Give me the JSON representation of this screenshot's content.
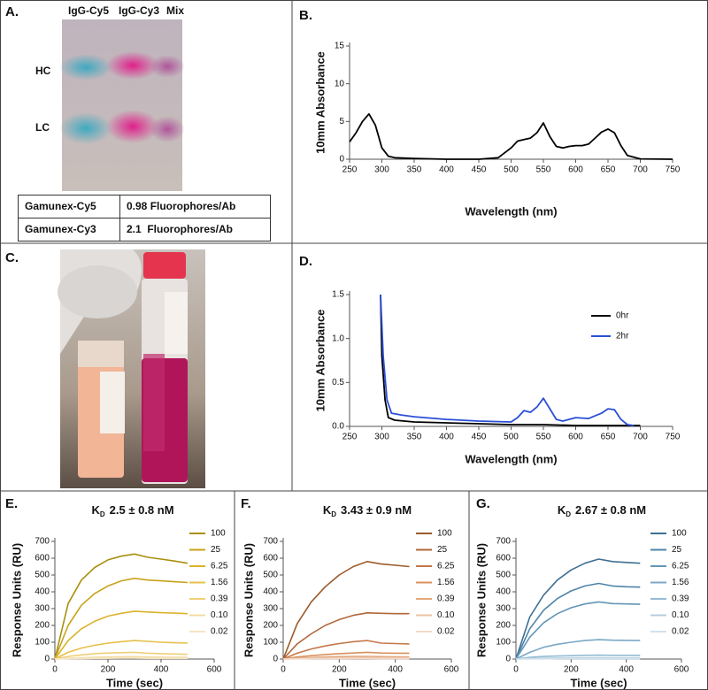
{
  "panel_labels": [
    "A.",
    "B.",
    "C.",
    "D.",
    "E.",
    "F.",
    "G."
  ],
  "gel": {
    "lanes": [
      "IgG-Cy5",
      "IgG-Cy3",
      "Mix"
    ],
    "bands": [
      "HC",
      "LC"
    ]
  },
  "table": {
    "rows": [
      [
        "Gamunex-Cy5",
        "0.98 Fluorophores/Ab"
      ],
      [
        "Gamunex-Cy3",
        "2.1  Fluorophores/Ab"
      ]
    ]
  },
  "chart_data": [
    {
      "type": "line",
      "ylabel": "10mm Absorbance",
      "xlabel": "Wavelength (nm)",
      "x": [
        250,
        260,
        270,
        280,
        290,
        300,
        310,
        320,
        350,
        400,
        450,
        480,
        500,
        510,
        520,
        530,
        540,
        550,
        560,
        570,
        580,
        590,
        600,
        610,
        620,
        630,
        640,
        650,
        660,
        670,
        680,
        700,
        750
      ],
      "series": [
        {
          "color": "#000000",
          "values": [
            2.3,
            3.5,
            5,
            6,
            4.5,
            1.5,
            0.4,
            0.2,
            0.1,
            0,
            0,
            0.2,
            1.5,
            2.4,
            2.6,
            2.8,
            3.5,
            4.8,
            3,
            1.7,
            1.5,
            1.7,
            1.8,
            1.8,
            2,
            2.8,
            3.6,
            4,
            3.5,
            1.8,
            0.5,
            0.05,
            0
          ]
        }
      ],
      "xlim": [
        250,
        750
      ],
      "xticks": [
        250,
        300,
        350,
        400,
        450,
        500,
        550,
        600,
        650,
        700,
        750
      ],
      "ylim": [
        0,
        15
      ],
      "yticks": [
        0,
        5,
        10,
        15
      ]
    },
    {
      "type": "line",
      "ylabel": "10mm Absorbance",
      "xlabel": "Wavelength (nm)",
      "series": [
        {
          "name": "0hr",
          "color": "#000000",
          "x": [
            298,
            300,
            305,
            310,
            320,
            350,
            400,
            450,
            500,
            550,
            600,
            650,
            700
          ],
          "values": [
            1.5,
            0.8,
            0.3,
            0.1,
            0.07,
            0.05,
            0.04,
            0.03,
            0.02,
            0.02,
            0.01,
            0.01,
            0.01
          ]
        },
        {
          "name": "2hr",
          "color": "#2b4fd6",
          "x": [
            298,
            302,
            308,
            315,
            330,
            350,
            400,
            450,
            500,
            510,
            520,
            530,
            540,
            550,
            560,
            570,
            580,
            600,
            620,
            640,
            650,
            660,
            670,
            680,
            690
          ],
          "values": [
            1.5,
            0.8,
            0.3,
            0.15,
            0.13,
            0.11,
            0.08,
            0.06,
            0.05,
            0.1,
            0.18,
            0.16,
            0.22,
            0.32,
            0.2,
            0.08,
            0.06,
            0.1,
            0.09,
            0.15,
            0.2,
            0.19,
            0.08,
            0.02,
            0.01
          ]
        }
      ],
      "xlim": [
        250,
        750
      ],
      "xticks": [
        250,
        300,
        350,
        400,
        450,
        500,
        550,
        600,
        650,
        700,
        750
      ],
      "ylim": [
        0,
        1.5
      ],
      "yticks": [
        {
          "value": 0,
          "label": "0.0"
        },
        0.5,
        {
          "value": 1,
          "label": "1.0"
        },
        1.5
      ]
    },
    {
      "type": "line",
      "title_symbol": "K",
      "title_subscript": "D",
      "title": "2.5 ± 0.8 nM",
      "ylabel": "Response Units (RU)",
      "xlabel": "Time (sec)",
      "x": [
        0,
        50,
        100,
        150,
        200,
        250,
        300,
        350,
        400,
        450,
        500
      ],
      "series": [
        {
          "name": "100",
          "color": "#a8900e",
          "values": [
            0,
            330,
            470,
            545,
            590,
            612,
            625,
            605,
            595,
            583,
            570
          ]
        },
        {
          "name": "25",
          "color": "#c9a21a",
          "values": [
            0,
            200,
            320,
            390,
            435,
            465,
            480,
            470,
            465,
            460,
            455
          ]
        },
        {
          "name": "6.25",
          "color": "#dcb32c",
          "values": [
            0,
            110,
            180,
            225,
            255,
            272,
            285,
            280,
            276,
            273,
            270
          ]
        },
        {
          "name": "1.56",
          "color": "#e6c04a",
          "values": [
            0,
            40,
            65,
            82,
            95,
            103,
            110,
            105,
            100,
            97,
            95
          ]
        },
        {
          "name": "0.39",
          "color": "#eecf78",
          "values": [
            0,
            15,
            25,
            32,
            36,
            38,
            40,
            35,
            32,
            30,
            28
          ]
        },
        {
          "name": "0.10",
          "color": "#f2dca0",
          "values": [
            0,
            5,
            8,
            10,
            12,
            13,
            14,
            12,
            11,
            10,
            10
          ]
        },
        {
          "name": "0.02",
          "color": "#f6e4c4",
          "values": [
            0,
            2,
            3,
            4,
            4,
            5,
            5,
            4,
            4,
            4,
            4
          ]
        }
      ],
      "xlim": [
        0,
        600
      ],
      "xticks": [
        0,
        200,
        400,
        600
      ],
      "ylim": [
        0,
        700
      ],
      "yticks": [
        0,
        100,
        200,
        300,
        400,
        500,
        600,
        700
      ]
    },
    {
      "type": "line",
      "title_symbol": "K",
      "title_subscript": "D",
      "title": "3.43 ± 0.9 nM",
      "ylabel": "Response Units (RU)",
      "xlabel": "Time (sec)",
      "x": [
        0,
        50,
        100,
        150,
        200,
        250,
        300,
        350,
        400,
        450
      ],
      "series": [
        {
          "name": "100",
          "color": "#9c5a2a",
          "values": [
            0,
            210,
            340,
            430,
            500,
            550,
            580,
            565,
            558,
            550
          ]
        },
        {
          "name": "25",
          "color": "#b0673a",
          "values": [
            0,
            90,
            150,
            200,
            235,
            260,
            275,
            272,
            270,
            270
          ]
        },
        {
          "name": "6.25",
          "color": "#c6774a",
          "values": [
            0,
            35,
            60,
            78,
            92,
            103,
            110,
            95,
            92,
            90
          ]
        },
        {
          "name": "1.56",
          "color": "#d8905f",
          "values": [
            0,
            12,
            20,
            27,
            32,
            36,
            40,
            36,
            35,
            35
          ]
        },
        {
          "name": "0.39",
          "color": "#e3a87c",
          "values": [
            0,
            5,
            9,
            12,
            14,
            15,
            16,
            14,
            13,
            13
          ]
        },
        {
          "name": "0.10",
          "color": "#ecc2a4",
          "values": [
            0,
            2,
            4,
            5,
            6,
            6,
            7,
            6,
            6,
            6
          ]
        },
        {
          "name": "0.02",
          "color": "#f3dacb",
          "values": [
            0,
            1,
            2,
            2,
            2,
            3,
            3,
            2,
            2,
            2
          ]
        }
      ],
      "xlim": [
        0,
        600
      ],
      "xticks": [
        0,
        200,
        400,
        600
      ],
      "ylim": [
        0,
        700
      ],
      "yticks": [
        0,
        100,
        200,
        300,
        400,
        500,
        600,
        700
      ]
    },
    {
      "type": "line",
      "title_symbol": "K",
      "title_subscript": "D",
      "title": "2.67 ± 0.8 nM",
      "ylabel": "Response Units (RU)",
      "xlabel": "Time (sec)",
      "x": [
        0,
        50,
        100,
        150,
        200,
        250,
        300,
        350,
        400,
        450
      ],
      "series": [
        {
          "name": "100",
          "color": "#3f6f92",
          "values": [
            0,
            250,
            380,
            470,
            530,
            570,
            595,
            580,
            575,
            570
          ]
        },
        {
          "name": "25",
          "color": "#4f84a8",
          "values": [
            0,
            180,
            290,
            360,
            405,
            435,
            450,
            435,
            430,
            428
          ]
        },
        {
          "name": "6.25",
          "color": "#6396b8",
          "values": [
            0,
            130,
            215,
            270,
            305,
            328,
            340,
            330,
            328,
            326
          ]
        },
        {
          "name": "1.56",
          "color": "#7aa8c6",
          "values": [
            0,
            40,
            70,
            88,
            100,
            110,
            115,
            112,
            111,
            110
          ]
        },
        {
          "name": "0.39",
          "color": "#95bbd3",
          "values": [
            0,
            10,
            15,
            18,
            20,
            22,
            23,
            22,
            22,
            22
          ]
        },
        {
          "name": "0.10",
          "color": "#b3cfe0",
          "values": [
            0,
            3,
            5,
            6,
            7,
            7,
            8,
            7,
            7,
            7
          ]
        },
        {
          "name": "0.02",
          "color": "#d0e1ec",
          "values": [
            0,
            1,
            1,
            2,
            2,
            2,
            2,
            2,
            2,
            2
          ]
        }
      ],
      "xlim": [
        0,
        600
      ],
      "xticks": [
        0,
        200,
        400,
        600
      ],
      "ylim": [
        0,
        700
      ],
      "yticks": [
        0,
        100,
        200,
        300,
        400,
        500,
        600,
        700
      ]
    }
  ]
}
